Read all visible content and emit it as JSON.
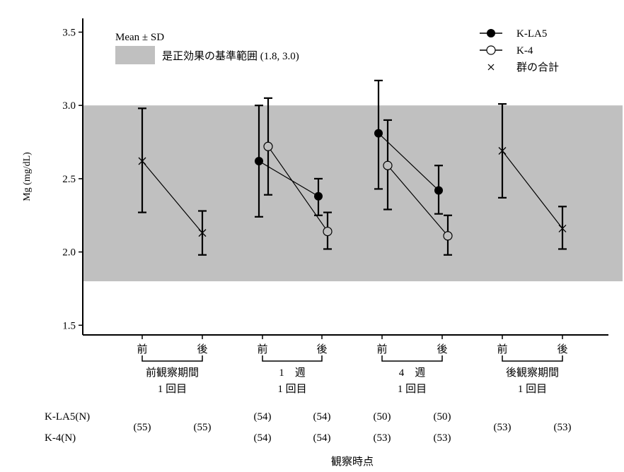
{
  "chart_data": {
    "type": "line",
    "title": "",
    "ylabel": "Mg (mg/dL)",
    "xlabel": "観察時点",
    "ylim": [
      1.5,
      3.5
    ],
    "yticks": [
      1.5,
      2.0,
      2.5,
      3.0,
      3.5
    ],
    "reference_band": {
      "label": "是正効果の基準範囲 (1.8, 3.0)",
      "low": 1.8,
      "high": 3.0,
      "color": "#c0c0c0"
    },
    "legend": {
      "position": "top-right",
      "band_title": "Mean ± SD",
      "items": [
        {
          "label": "K-LA5",
          "marker": "filled-circle"
        },
        {
          "label": "K-4",
          "marker": "open-circle"
        },
        {
          "label": "群の合計",
          "marker": "cross"
        }
      ]
    },
    "categories": [
      "前",
      "後",
      "前",
      "後",
      "前",
      "後",
      "前",
      "後"
    ],
    "groups": [
      {
        "line1": "前観察期間",
        "line2": "1 回目",
        "members": [
          0,
          1
        ]
      },
      {
        "line1": "1　週",
        "line2": "1 回目",
        "members": [
          2,
          3
        ]
      },
      {
        "line1": "4　週",
        "line2": "1 回目",
        "members": [
          4,
          5
        ]
      },
      {
        "line1": "後観察期間",
        "line2": "1 回目",
        "members": [
          6,
          7
        ]
      }
    ],
    "series": [
      {
        "name": "K-LA5",
        "marker": "filled-circle",
        "segments": [
          [
            {
              "cat": 2,
              "mean": 2.62,
              "lo": 2.24,
              "hi": 3.0
            },
            {
              "cat": 3,
              "mean": 2.38,
              "lo": 2.25,
              "hi": 2.5
            }
          ],
          [
            {
              "cat": 4,
              "mean": 2.81,
              "lo": 2.43,
              "hi": 3.17
            },
            {
              "cat": 5,
              "mean": 2.42,
              "lo": 2.26,
              "hi": 2.59
            }
          ]
        ]
      },
      {
        "name": "K-4",
        "marker": "open-circle",
        "segments": [
          [
            {
              "cat": 2,
              "mean": 2.72,
              "lo": 2.39,
              "hi": 3.05
            },
            {
              "cat": 3,
              "mean": 2.14,
              "lo": 2.02,
              "hi": 2.27
            }
          ],
          [
            {
              "cat": 4,
              "mean": 2.59,
              "lo": 2.29,
              "hi": 2.9
            },
            {
              "cat": 5,
              "mean": 2.11,
              "lo": 1.98,
              "hi": 2.25
            }
          ]
        ]
      },
      {
        "name": "群の合計",
        "marker": "cross",
        "segments": [
          [
            {
              "cat": 0,
              "mean": 2.62,
              "lo": 2.27,
              "hi": 2.98
            },
            {
              "cat": 1,
              "mean": 2.13,
              "lo": 1.98,
              "hi": 2.28
            }
          ],
          [
            {
              "cat": 6,
              "mean": 2.69,
              "lo": 2.37,
              "hi": 3.01
            },
            {
              "cat": 7,
              "mean": 2.16,
              "lo": 2.02,
              "hi": 2.31
            }
          ]
        ]
      }
    ],
    "n_table": {
      "rows": [
        {
          "label": "K-LA5(N)",
          "values": [
            "(55)",
            "(55)",
            "(54)",
            "(54)",
            "(50)",
            "(50)",
            "(53)",
            "(53)"
          ]
        },
        {
          "label": "K-4(N)",
          "values": [
            null,
            null,
            "(54)",
            "(54)",
            "(53)",
            "(53)",
            null,
            null
          ]
        }
      ]
    }
  }
}
